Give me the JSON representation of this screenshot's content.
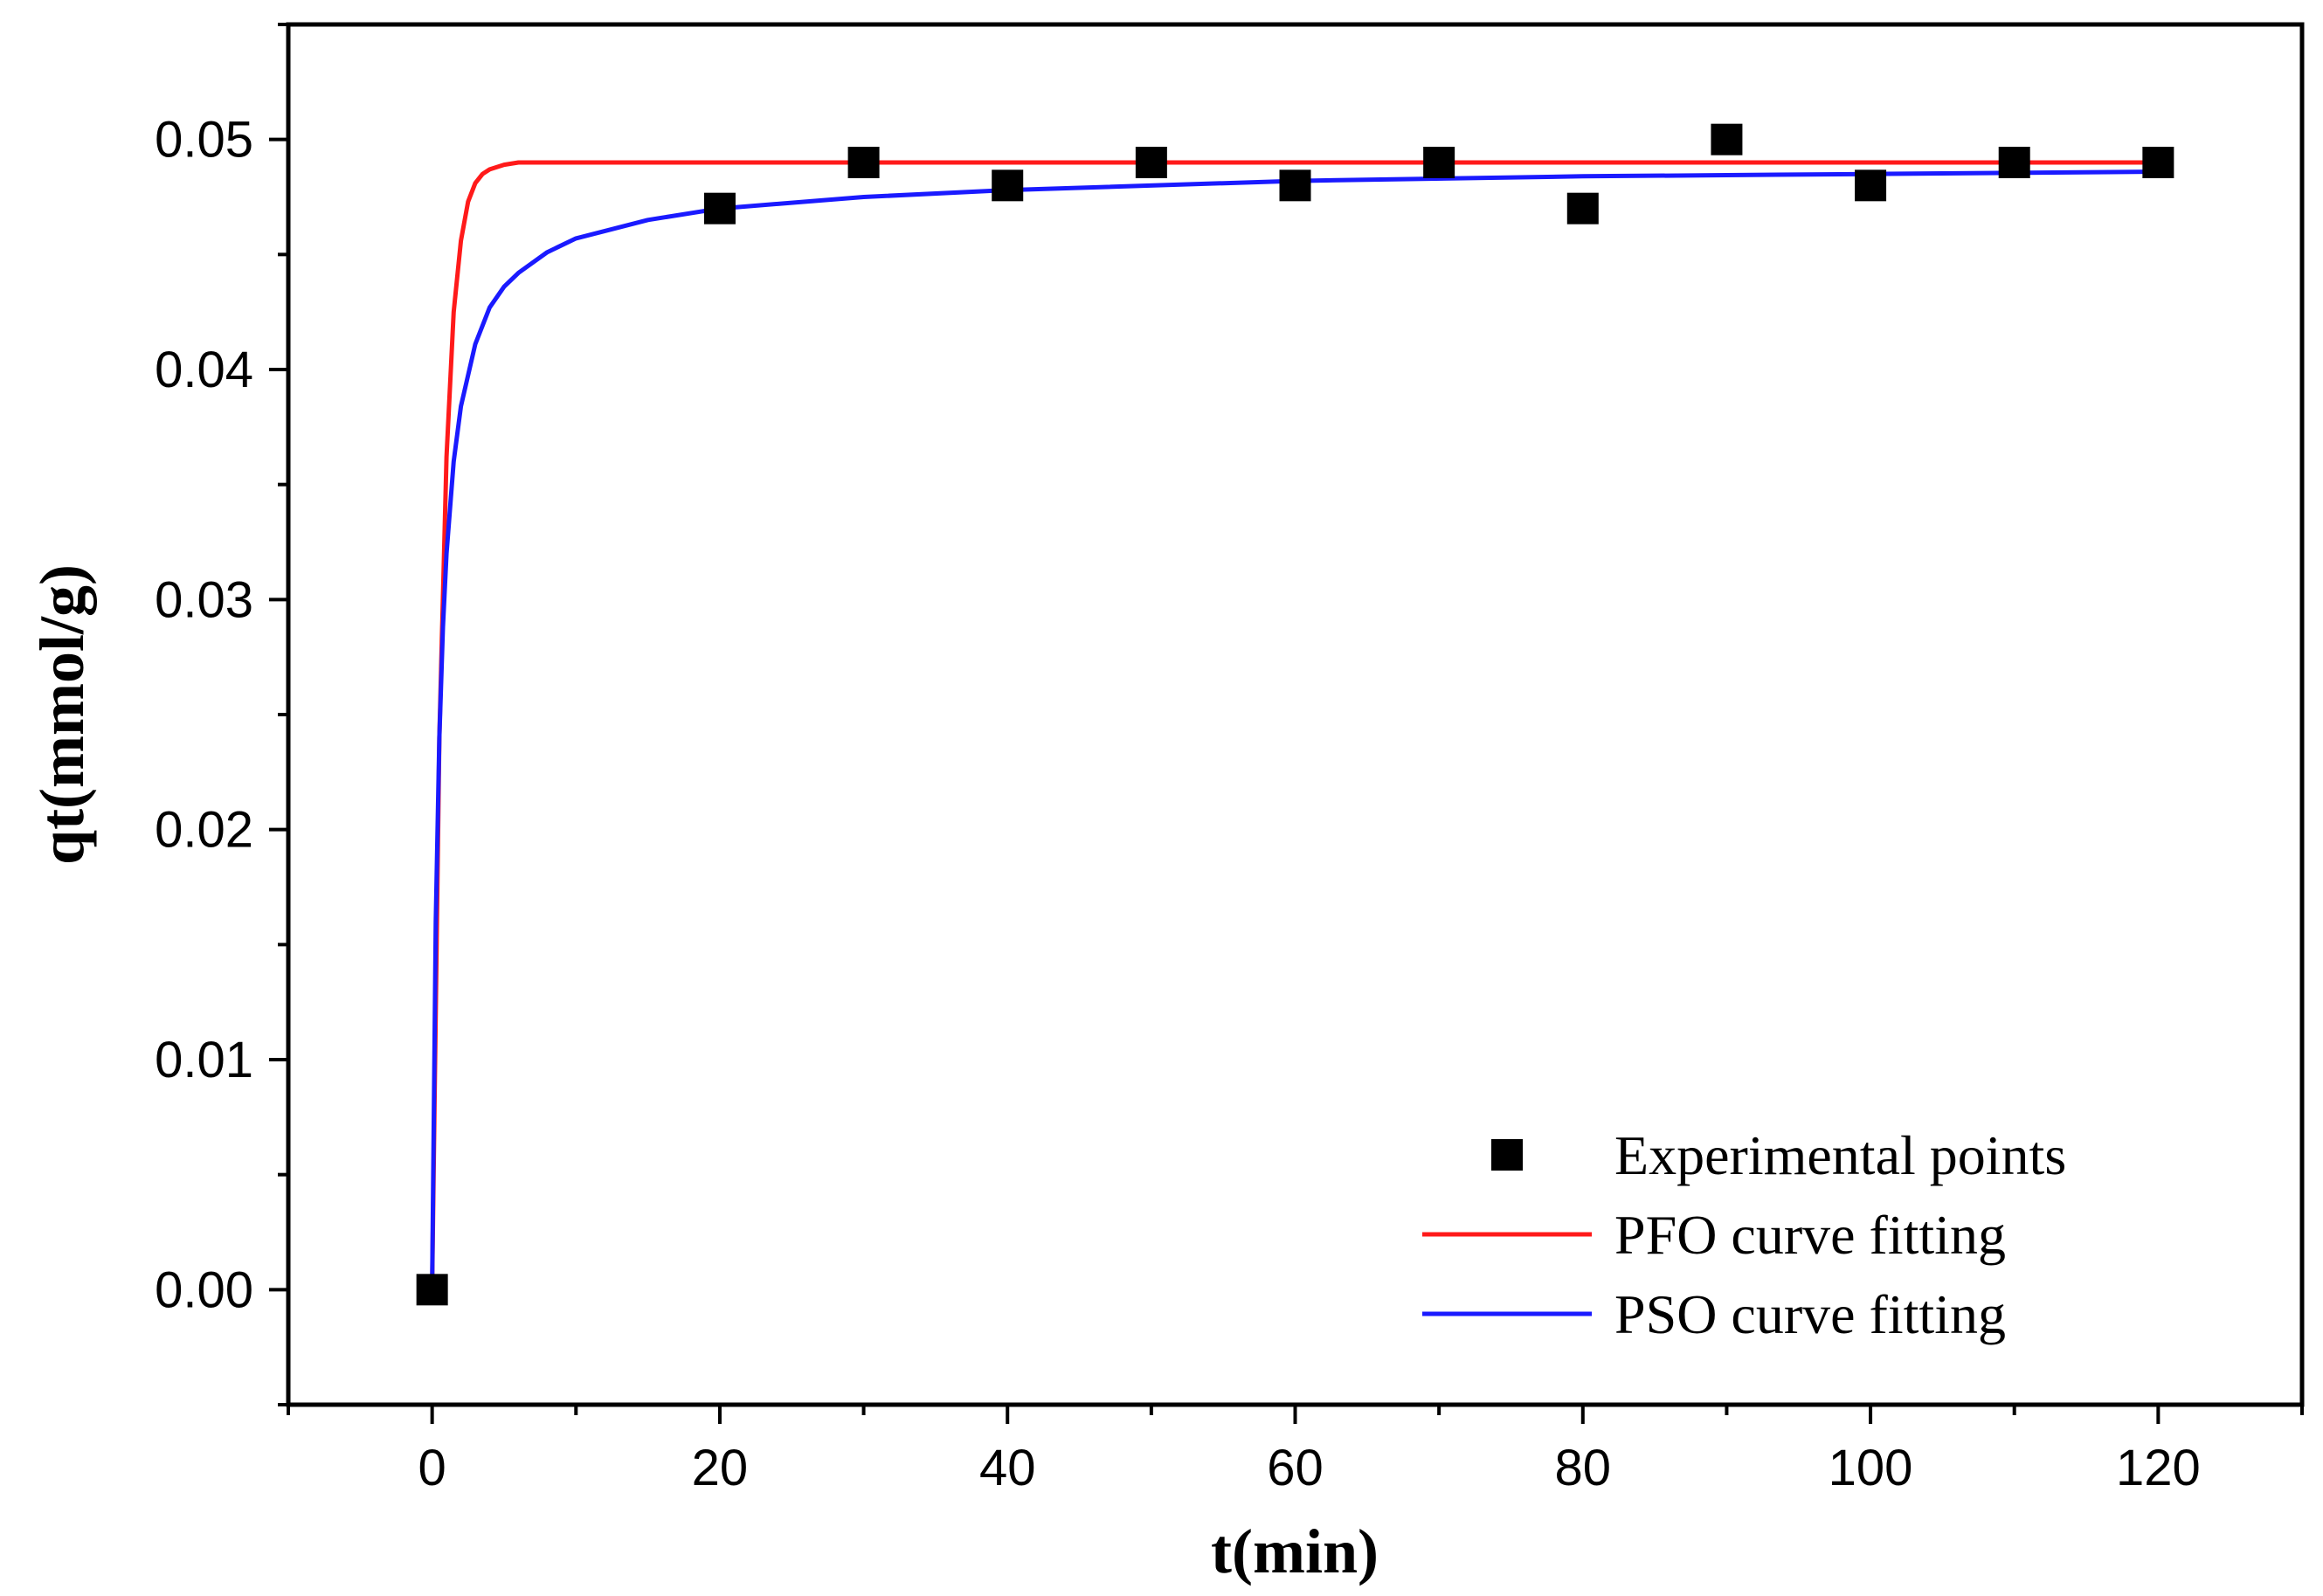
{
  "chart_data": {
    "type": "scatter",
    "title": "",
    "xlabel": "t(min)",
    "ylabel": "qt(mmol/g)",
    "xlim": [
      -10,
      130
    ],
    "ylim": [
      -0.005,
      0.055
    ],
    "xticks": [
      0,
      20,
      40,
      60,
      80,
      100,
      120
    ],
    "xtick_labels": [
      "0",
      "20",
      "40",
      "60",
      "80",
      "100",
      "120"
    ],
    "yticks": [
      0.0,
      0.01,
      0.02,
      0.03,
      0.04,
      0.05
    ],
    "ytick_labels": [
      "0.00",
      "0.01",
      "0.02",
      "0.03",
      "0.04",
      "0.05"
    ],
    "grid": false,
    "legend_position": "bottom-right",
    "series": [
      {
        "name": "Experimental points",
        "kind": "scatter",
        "marker": "square",
        "color": "#000000",
        "x": [
          0,
          20,
          30,
          40,
          50,
          60,
          70,
          80,
          90,
          100,
          110,
          120
        ],
        "y": [
          0.0,
          0.047,
          0.049,
          0.048,
          0.049,
          0.048,
          0.049,
          0.047,
          0.05,
          0.048,
          0.049,
          0.049
        ]
      },
      {
        "name": "PFO curve fitting",
        "kind": "line",
        "color": "#ff1a1a",
        "x": [
          0,
          0.5,
          1,
          1.5,
          2,
          2.5,
          3,
          3.5,
          4,
          5,
          6,
          8,
          10,
          20,
          40,
          60,
          80,
          100,
          120
        ],
        "y": [
          0.0,
          0.024,
          0.0362,
          0.0425,
          0.0456,
          0.0473,
          0.0481,
          0.0485,
          0.0487,
          0.0489,
          0.049,
          0.049,
          0.049,
          0.049,
          0.049,
          0.049,
          0.049,
          0.049,
          0.049
        ]
      },
      {
        "name": "PSO curve fitting",
        "kind": "line",
        "color": "#1a1aff",
        "x": [
          0,
          0.25,
          0.5,
          0.75,
          1,
          1.5,
          2,
          3,
          4,
          5,
          6,
          8,
          10,
          15,
          20,
          30,
          40,
          60,
          80,
          100,
          120
        ],
        "y": [
          0.0,
          0.016,
          0.024,
          0.0288,
          0.032,
          0.036,
          0.0384,
          0.0411,
          0.0427,
          0.0436,
          0.0442,
          0.0451,
          0.0457,
          0.0465,
          0.047,
          0.0475,
          0.0478,
          0.0482,
          0.0484,
          0.0485,
          0.0486
        ]
      }
    ]
  }
}
